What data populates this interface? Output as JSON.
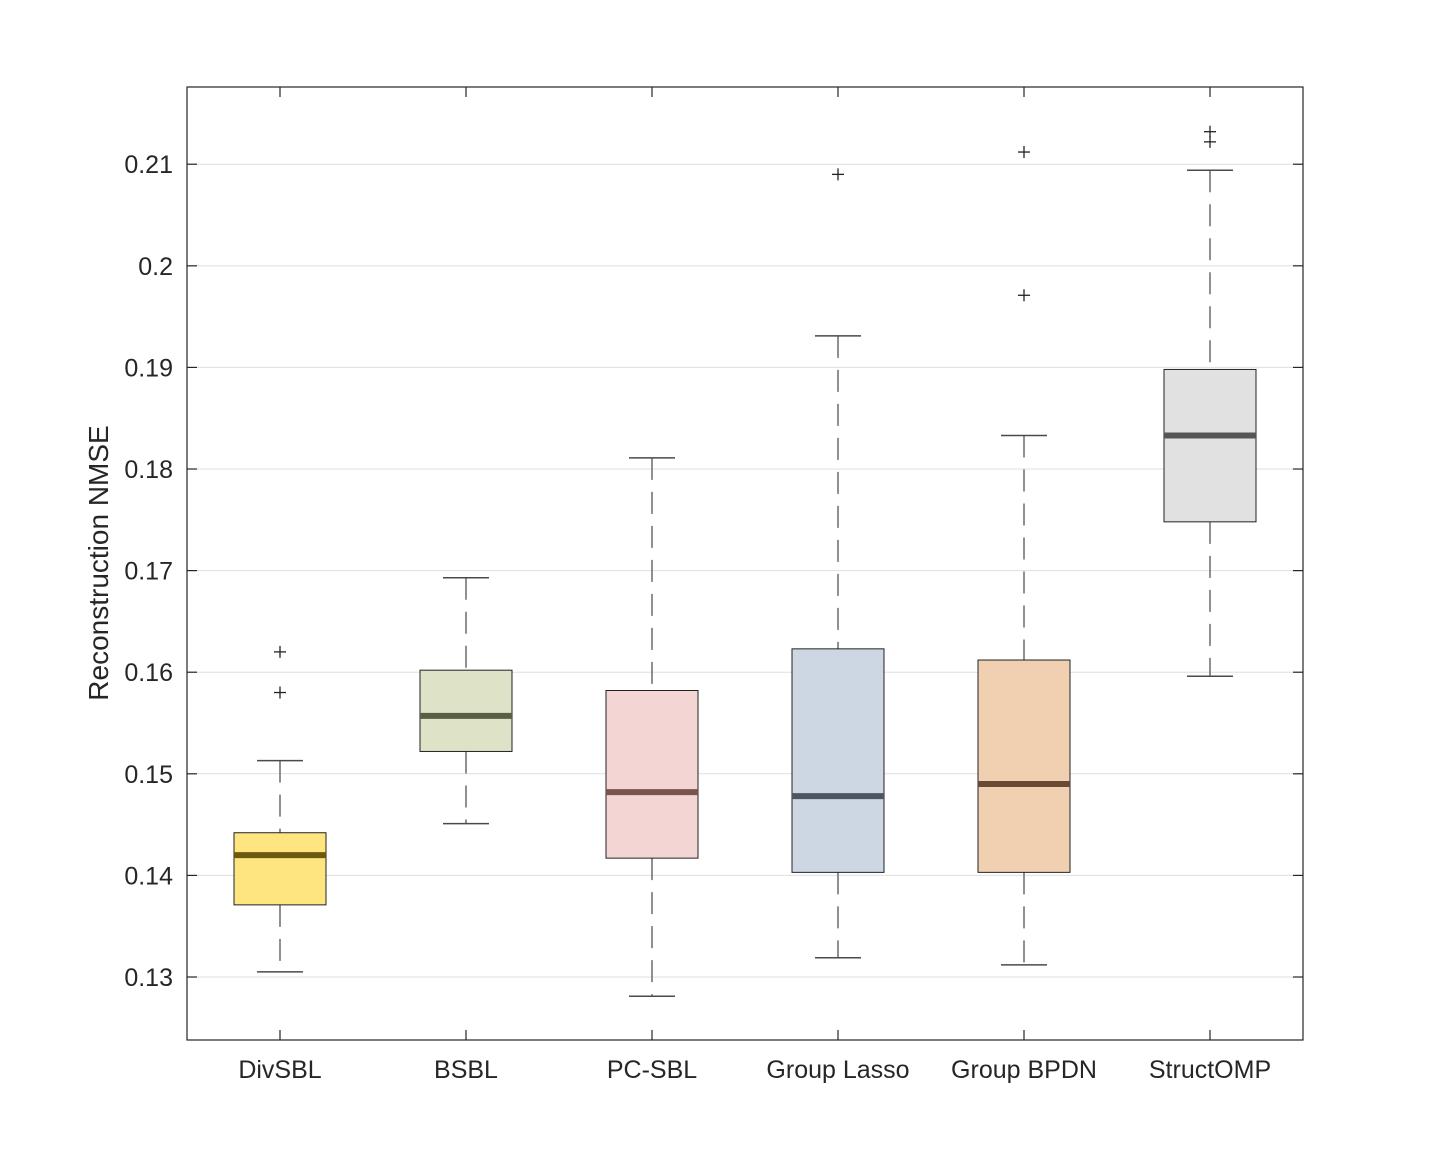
{
  "chart_data": {
    "type": "box",
    "title": "",
    "xlabel": "",
    "ylabel": "Reconstruction NMSE",
    "ylim": [
      0.1238,
      0.2176
    ],
    "yticks": [
      0.13,
      0.14,
      0.15,
      0.16,
      0.17,
      0.18,
      0.19,
      0.2,
      0.21
    ],
    "ytick_labels": [
      "0.13",
      "0.14",
      "0.15",
      "0.16",
      "0.17",
      "0.18",
      "0.19",
      "0.2",
      "0.21"
    ],
    "grid": "horizontal",
    "categories": [
      "DivSBL",
      "BSBL",
      "PC-SBL",
      "Group Lasso",
      "Group BPDN",
      "StructOMP"
    ],
    "boxes": [
      {
        "name": "DivSBL",
        "whisker_low": 0.1305,
        "q1": 0.1371,
        "median": 0.142,
        "q3": 0.1442,
        "whisker_high": 0.1513,
        "outliers": [
          0.158,
          0.162
        ],
        "fill": "#FFE57F",
        "median_color": "#6B5A0E"
      },
      {
        "name": "BSBL",
        "whisker_low": 0.1451,
        "q1": 0.1522,
        "median": 0.1557,
        "q3": 0.1602,
        "whisker_high": 0.1693,
        "outliers": [],
        "fill": "#DEE3C8",
        "median_color": "#5A5E45"
      },
      {
        "name": "PC-SBL",
        "whisker_low": 0.1281,
        "q1": 0.1417,
        "median": 0.1482,
        "q3": 0.1582,
        "whisker_high": 0.1811,
        "outliers": [],
        "fill": "#F3D5D4",
        "median_color": "#7A5550"
      },
      {
        "name": "Group Lasso",
        "whisker_low": 0.1319,
        "q1": 0.1403,
        "median": 0.1478,
        "q3": 0.1623,
        "whisker_high": 0.1931,
        "outliers": [
          0.209
        ],
        "fill": "#CDD7E3",
        "median_color": "#4D5560"
      },
      {
        "name": "Group BPDN",
        "whisker_low": 0.1312,
        "q1": 0.1403,
        "median": 0.149,
        "q3": 0.1612,
        "whisker_high": 0.1833,
        "outliers": [
          0.1971,
          0.2112
        ],
        "fill": "#F1CFB1",
        "median_color": "#6B4A35"
      },
      {
        "name": "StructOMP",
        "whisker_low": 0.1596,
        "q1": 0.1748,
        "median": 0.1833,
        "q3": 0.1898,
        "whisker_high": 0.2094,
        "outliers": [
          0.2122,
          0.2132
        ],
        "fill": "#E1E1E1",
        "median_color": "#555555"
      }
    ]
  }
}
